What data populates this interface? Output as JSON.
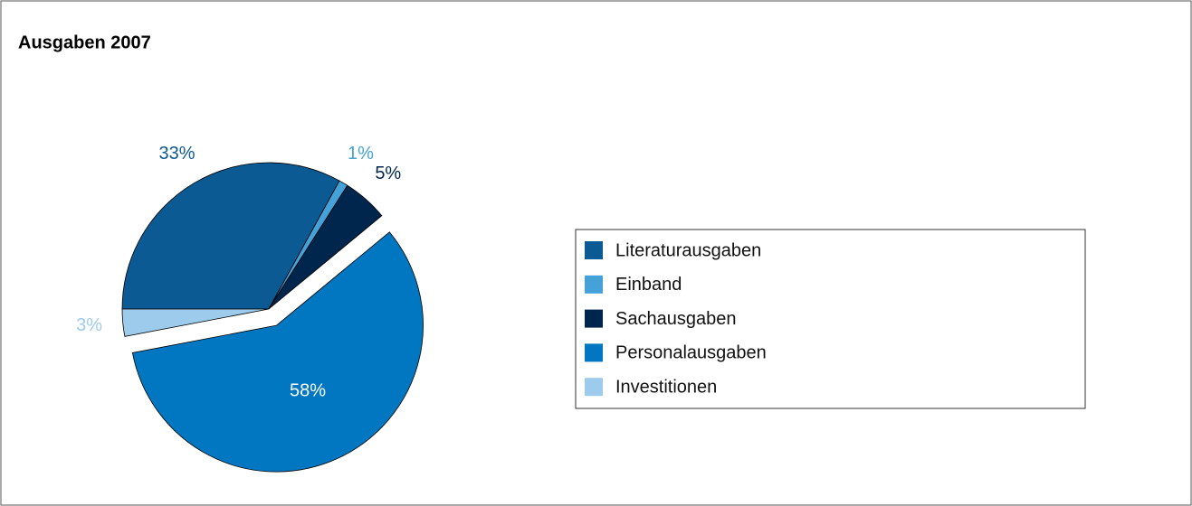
{
  "chart_data": {
    "type": "pie",
    "title": "Ausgaben 2007",
    "categories": [
      "Literaturausgaben",
      "Einband",
      "Sachausgaben",
      "Personalausgaben",
      "Investitionen"
    ],
    "values": [
      33,
      1,
      5,
      58,
      3
    ],
    "value_labels": [
      "33%",
      "1%",
      "5%",
      "58%",
      "3%"
    ],
    "colors": [
      "#0b5a93",
      "#45a2d9",
      "#00264d",
      "#0077c0",
      "#9ccbeb"
    ],
    "legend": "right"
  }
}
